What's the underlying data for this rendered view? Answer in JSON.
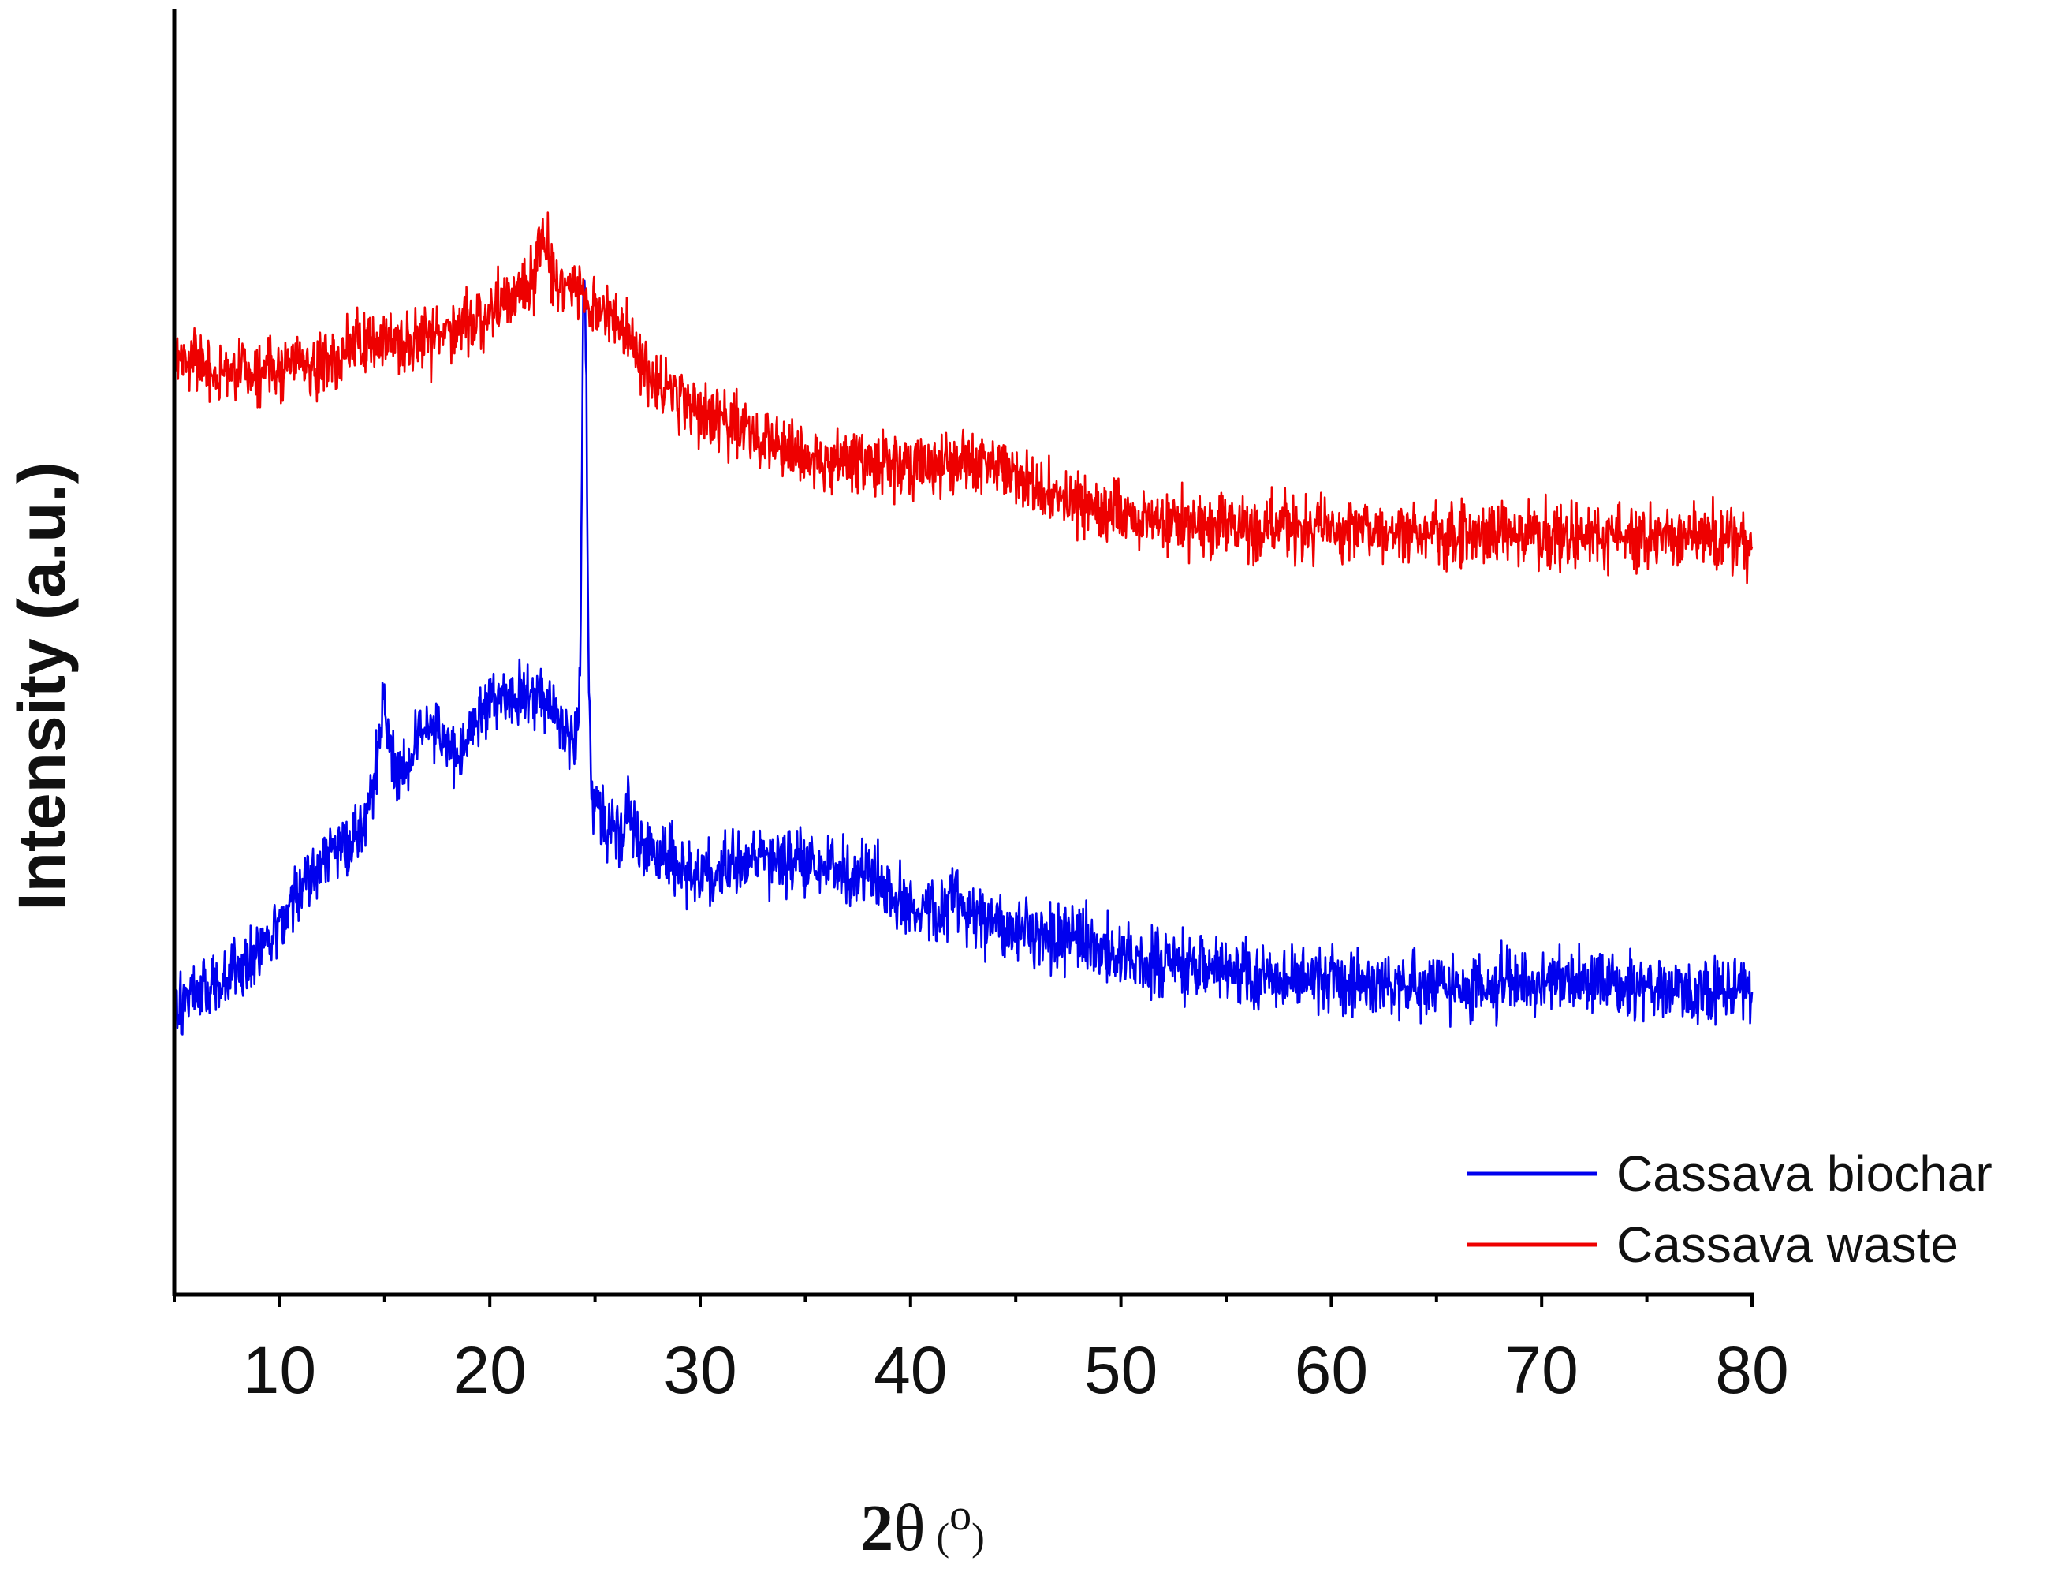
{
  "chart_data": {
    "type": "line",
    "title": "",
    "xlabel": "2θ (°)",
    "xlabel_parts": {
      "main_bold": "2",
      "main": "θ",
      "open_paren": "(",
      "degree": "o",
      "close_paren": ")"
    },
    "ylabel": "Intensity (a.u.)",
    "xlim": [
      5,
      80
    ],
    "ylim": [
      0,
      100
    ],
    "x_ticks": [
      10,
      20,
      30,
      40,
      50,
      60,
      70,
      80
    ],
    "x_tick_labels": [
      "10",
      "20",
      "30",
      "40",
      "50",
      "60",
      "70",
      "80"
    ],
    "y_ticks_shown": false,
    "grid": false,
    "legend_position": "bottom-right",
    "series": [
      {
        "name": "Cassava biochar",
        "color": "#0000ee",
        "noise": 2.2,
        "profile": [
          [
            5,
            23
          ],
          [
            7,
            24
          ],
          [
            9,
            27
          ],
          [
            11,
            31.5
          ],
          [
            12.5,
            34.5
          ],
          [
            13.5,
            35
          ],
          [
            14.5,
            39
          ],
          [
            15,
            42.5
          ],
          [
            15.5,
            40
          ],
          [
            16.5,
            43
          ],
          [
            17.5,
            44
          ],
          [
            18.5,
            42
          ],
          [
            19.5,
            45.5
          ],
          [
            21,
            46.5
          ],
          [
            22,
            46.5
          ],
          [
            23,
            46
          ],
          [
            24,
            43
          ],
          [
            24.3,
            42
          ],
          [
            25,
            38
          ],
          [
            26,
            35.5
          ],
          [
            28,
            34
          ],
          [
            30,
            33
          ],
          [
            32,
            33.5
          ],
          [
            34,
            34
          ],
          [
            36,
            33
          ],
          [
            38,
            32.8
          ],
          [
            40,
            30
          ],
          [
            42,
            30
          ],
          [
            44,
            29
          ],
          [
            46,
            28
          ],
          [
            48,
            27.5
          ],
          [
            50,
            26.5
          ],
          [
            52,
            25.8
          ],
          [
            55,
            25
          ],
          [
            60,
            24.5
          ],
          [
            65,
            24
          ],
          [
            70,
            24.2
          ],
          [
            75,
            24
          ],
          [
            80,
            23.5
          ]
        ],
        "peaks": [
          {
            "x": 24.5,
            "height": 39,
            "width": 0.12
          },
          {
            "x": 15.0,
            "height": 3,
            "width": 0.3
          },
          {
            "x": 26.6,
            "height": 3,
            "width": 0.15
          },
          {
            "x": 42.0,
            "height": 2.5,
            "width": 0.15
          }
        ]
      },
      {
        "name": "Cassava waste",
        "color": "#ee0000",
        "noise": 2.2,
        "profile": [
          [
            5,
            73
          ],
          [
            8,
            71.5
          ],
          [
            11,
            72.5
          ],
          [
            14,
            73.5
          ],
          [
            17,
            74.5
          ],
          [
            20,
            76.5
          ],
          [
            22,
            78.5
          ],
          [
            24,
            78.5
          ],
          [
            26,
            76
          ],
          [
            28,
            71
          ],
          [
            30,
            68.5
          ],
          [
            33,
            66.5
          ],
          [
            36,
            65
          ],
          [
            38,
            64.5
          ],
          [
            40,
            64.5
          ],
          [
            42,
            65
          ],
          [
            44,
            64.5
          ],
          [
            46,
            63
          ],
          [
            48,
            61.5
          ],
          [
            50,
            60.5
          ],
          [
            54,
            60
          ],
          [
            60,
            59.5
          ],
          [
            65,
            59.3
          ],
          [
            70,
            59
          ],
          [
            75,
            59
          ],
          [
            80,
            59
          ]
        ],
        "peaks": [
          {
            "x": 22.5,
            "height": 4,
            "width": 0.25
          }
        ]
      }
    ]
  }
}
